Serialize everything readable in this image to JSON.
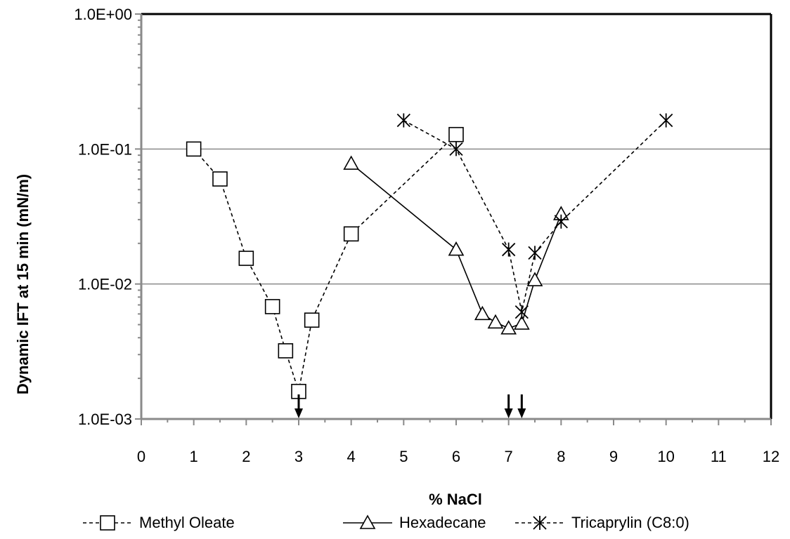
{
  "chart_data": {
    "type": "scatter",
    "xlabel": "% NaCl",
    "ylabel": "Dynamic IFT at 15 min (mN/m)",
    "xlim": [
      0,
      12
    ],
    "ylim": [
      0.001,
      1
    ],
    "yscale": "log",
    "x_ticks": [
      "0",
      "1",
      "2",
      "3",
      "4",
      "5",
      "6",
      "7",
      "8",
      "9",
      "10",
      "11",
      "12"
    ],
    "y_ticks": [
      "1.0E-03",
      "1.0E-02",
      "1.0E-01",
      "1.0E+00"
    ],
    "y_tick_values": [
      0.001,
      0.01,
      0.1,
      1
    ],
    "grid": "horizontal",
    "legend_position": "bottom",
    "series": [
      {
        "name": "Methyl Oleate",
        "marker": "square",
        "line": "dashed",
        "x": [
          1,
          1.5,
          2,
          2.5,
          2.75,
          3,
          3.25,
          4,
          6
        ],
        "y": [
          0.1,
          0.06,
          0.0155,
          0.0068,
          0.0032,
          0.0016,
          0.0054,
          0.0235,
          0.128
        ]
      },
      {
        "name": "Hexadecane",
        "marker": "triangle",
        "line": "solid",
        "x": [
          4,
          6,
          6.5,
          6.75,
          7,
          7.25,
          7.5,
          8
        ],
        "y": [
          0.078,
          0.018,
          0.006,
          0.0052,
          0.0047,
          0.0051,
          0.0107,
          0.033
        ]
      },
      {
        "name": "Tricaprylin (C8:0)",
        "marker": "asterisk",
        "line": "dashed",
        "x": [
          5,
          6,
          7,
          7.25,
          7.5,
          8,
          10
        ],
        "y": [
          0.163,
          0.1,
          0.018,
          0.0062,
          0.017,
          0.029,
          0.163
        ]
      }
    ],
    "annotations": {
      "type": "down-arrow",
      "x": [
        3,
        7,
        7.25
      ]
    }
  }
}
